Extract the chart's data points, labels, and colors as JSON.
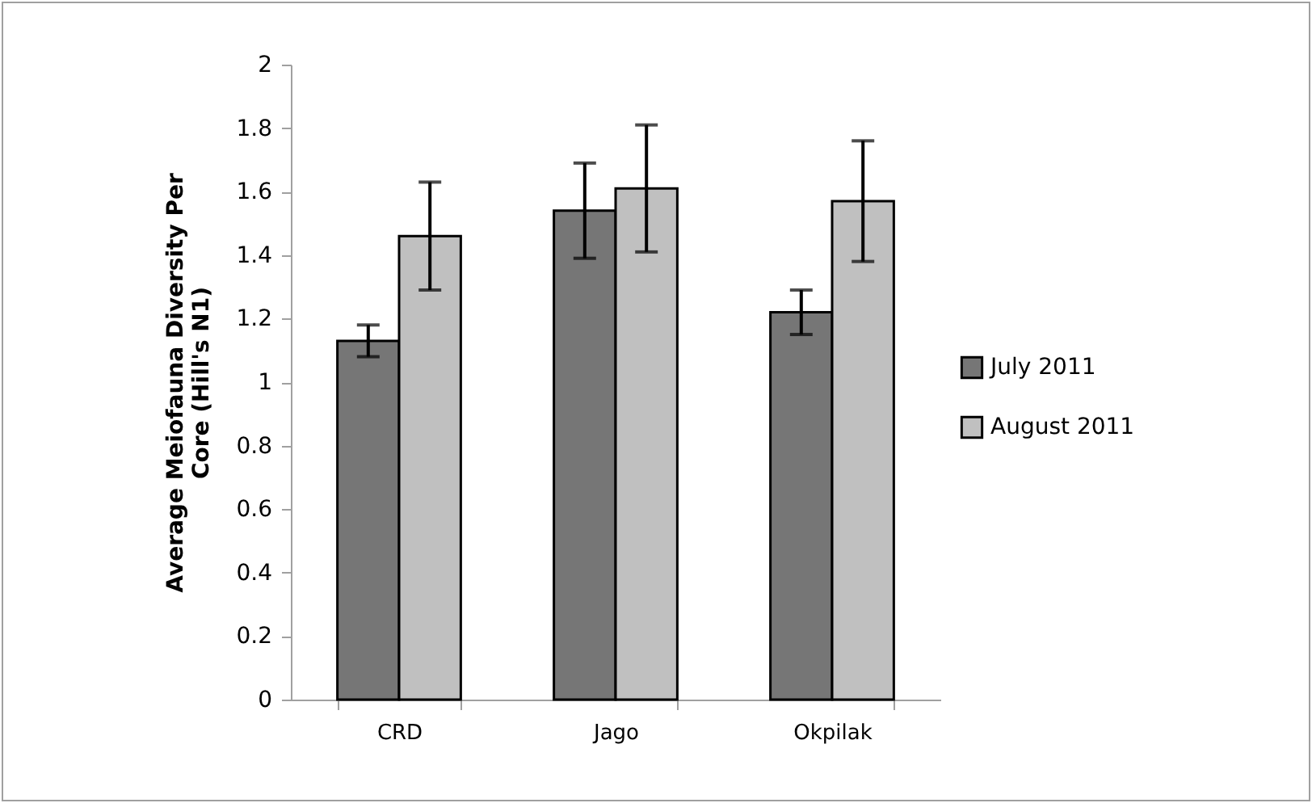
{
  "chart_data": {
    "type": "bar",
    "ylabel": "Average Meiofauna Diversity Per\nCore (Hill's N1)",
    "categories": [
      "CRD",
      "Jago",
      "Okpilak"
    ],
    "series": [
      {
        "name": "July 2011",
        "color": "#767676",
        "values": [
          1.13,
          1.54,
          1.22
        ],
        "errors": [
          0.05,
          0.15,
          0.07
        ]
      },
      {
        "name": "August 2011",
        "color": "#c0c0c0",
        "values": [
          1.46,
          1.61,
          1.57
        ],
        "errors": [
          0.17,
          0.2,
          0.19
        ]
      }
    ],
    "ylim": [
      0,
      2
    ],
    "yticks": [
      0,
      0.2,
      0.4,
      0.6,
      0.8,
      1,
      1.2,
      1.4,
      1.6,
      1.8,
      2
    ],
    "grid": false,
    "legend": "right"
  }
}
